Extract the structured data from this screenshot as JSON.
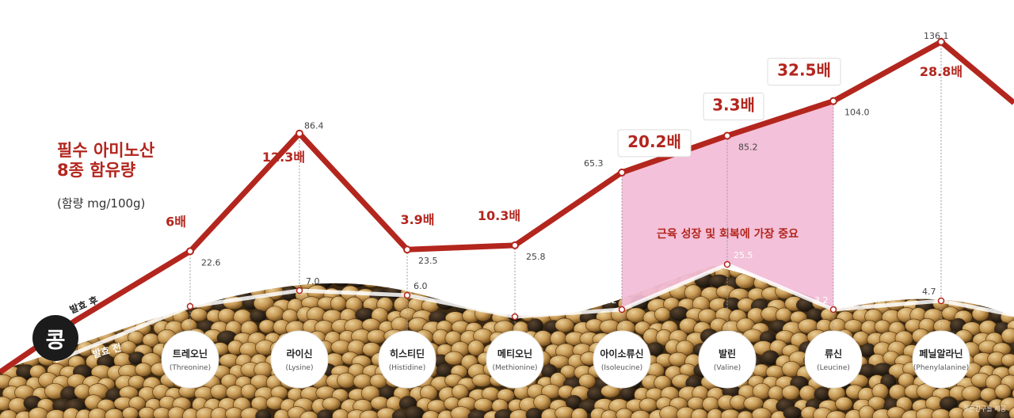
{
  "chart_data": {
    "type": "line",
    "title_line1": "필수 아미노산",
    "title_line2": "8종 함유량",
    "unit": "(함량 mg/100g)",
    "badge": "콩",
    "highlight_text": "근육 성장 및 회복에 가장 중요",
    "categories": [
      {
        "ko": "트레오닌",
        "en": "(Threonine)"
      },
      {
        "ko": "라이신",
        "en": "(Lysine)"
      },
      {
        "ko": "히스티딘",
        "en": "(Histidine)"
      },
      {
        "ko": "메티오닌",
        "en": "(Methionine)"
      },
      {
        "ko": "아이소류신",
        "en": "(Isoleucine)"
      },
      {
        "ko": "발린",
        "en": "(Valine)"
      },
      {
        "ko": "류신",
        "en": "(Leucine)"
      },
      {
        "ko": "페닐알라닌",
        "en": "(Phenylalanine)"
      }
    ],
    "series": [
      {
        "name": "발효 후",
        "values": [
          22.6,
          86.4,
          23.5,
          25.8,
          65.3,
          85.2,
          104.0,
          136.1
        ],
        "labels": [
          "22.6",
          "86.4",
          "23.5",
          "25.8",
          "65.3",
          "85.2",
          "104.0",
          "136.1"
        ],
        "color": "#b3261e"
      },
      {
        "name": "발효 전",
        "values": [
          3.8,
          7.0,
          6.0,
          2.5,
          3.2,
          25.5,
          3.2,
          4.7
        ],
        "labels": [
          "3.8",
          "7.0",
          "6.0",
          "2.5",
          "3.2",
          "25.5",
          "3.2",
          "4.7"
        ],
        "color": "#ffffff"
      }
    ],
    "multipliers": [
      "6배",
      "12.3배",
      "3.9배",
      "10.3배",
      "20.2배",
      "3.3배",
      "32.5배",
      "28.8배"
    ],
    "boxed_multipliers": [
      4,
      5,
      6
    ],
    "highlight_categories": [
      4,
      6
    ],
    "colors": {
      "line": "#b3261e",
      "highlight": "#f2bcd6",
      "highlight_text": "#b3261e"
    }
  },
  "credit": "푸른친구들 제공"
}
